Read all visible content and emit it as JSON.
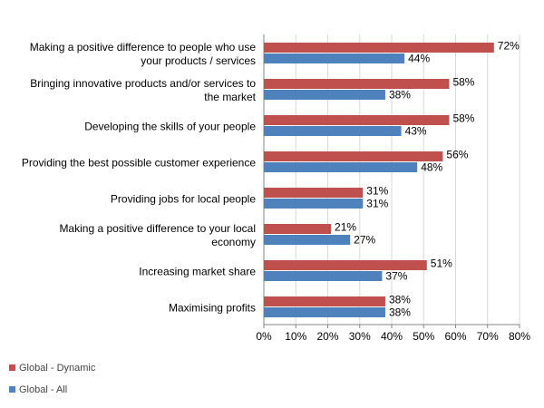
{
  "chart_data": {
    "type": "bar",
    "orientation": "horizontal",
    "categories": [
      "Making a positive difference to people who use\nyour products / services",
      "Bringing innovative products and/or services to\nthe market",
      "Developing the skills of your people",
      "Providing the best possible customer experience",
      "Providing jobs for local people",
      "Making a positive difference to your local\neconomy",
      "Increasing market share",
      "Maximising profits"
    ],
    "series": [
      {
        "name": "Global - Dynamic",
        "color": "#c0504d",
        "values": [
          72,
          58,
          58,
          56,
          31,
          21,
          51,
          38
        ],
        "value_labels": [
          "72%",
          "58%",
          "58%",
          "56%",
          "31%",
          "21%",
          "51%",
          "38%"
        ]
      },
      {
        "name": "Global - All",
        "color": "#4f81bd",
        "values": [
          44,
          38,
          43,
          48,
          31,
          27,
          37,
          38
        ],
        "value_labels": [
          "44%",
          "38%",
          "43%",
          "48%",
          "31%",
          "27%",
          "37%",
          "38%"
        ]
      }
    ],
    "xlim": [
      0,
      80
    ],
    "xticks": [
      {
        "value": 0,
        "label": "0%"
      },
      {
        "value": 10,
        "label": "10%"
      },
      {
        "value": 20,
        "label": "20%"
      },
      {
        "value": 30,
        "label": "30%"
      },
      {
        "value": 40,
        "label": "40%"
      },
      {
        "value": 50,
        "label": "50%"
      },
      {
        "value": 60,
        "label": "60%"
      },
      {
        "value": 70,
        "label": "70%"
      },
      {
        "value": 80,
        "label": "80%"
      }
    ],
    "grid": true,
    "legend": "bottom-left"
  }
}
